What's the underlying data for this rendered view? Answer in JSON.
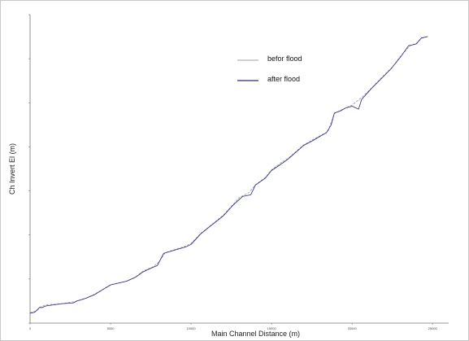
{
  "chart_data": {
    "type": "line",
    "title": "",
    "xlabel": "Main Channel Distance (m)",
    "ylabel": "Ch Invert El (m)",
    "x_ticks": [
      "0",
      "5000",
      "10000",
      "15000",
      "20000",
      "25000"
    ],
    "y_ticks": [
      "",
      "",
      "",
      "",
      "",
      "",
      "",
      ""
    ],
    "legend_position": "top-center",
    "series": [
      {
        "name": "befor flood",
        "color": "#a0a0a0",
        "points": [
          [
            0,
            0.65
          ],
          [
            400,
            0.75
          ],
          [
            700,
            1.02
          ],
          [
            1000,
            1.13
          ],
          [
            2000,
            1.2
          ],
          [
            2800,
            1.33
          ],
          [
            3300,
            1.46
          ],
          [
            4000,
            1.77
          ],
          [
            5000,
            2.36
          ],
          [
            6000,
            2.58
          ],
          [
            6500,
            2.8
          ],
          [
            7000,
            3.2
          ],
          [
            7600,
            3.44
          ],
          [
            8000,
            3.76
          ],
          [
            8400,
            4.34
          ],
          [
            9000,
            4.53
          ],
          [
            9600,
            4.72
          ],
          [
            10000,
            4.91
          ],
          [
            10600,
            5.52
          ],
          [
            11000,
            5.84
          ],
          [
            12000,
            6.65
          ],
          [
            12600,
            7.3
          ],
          [
            13000,
            7.74
          ],
          [
            13600,
            8.04
          ],
          [
            14000,
            8.52
          ],
          [
            14600,
            8.96
          ],
          [
            15000,
            9.44
          ],
          [
            15600,
            9.89
          ],
          [
            16000,
            10.12
          ],
          [
            17000,
            10.98
          ],
          [
            17600,
            11.32
          ],
          [
            18000,
            11.53
          ],
          [
            18500,
            11.79
          ],
          [
            18900,
            12.92
          ],
          [
            19400,
            13.16
          ],
          [
            20000,
            13.43
          ],
          [
            20600,
            13.9
          ],
          [
            21200,
            14.46
          ],
          [
            21800,
            15.1
          ],
          [
            22500,
            15.76
          ],
          [
            23000,
            16.43
          ],
          [
            23600,
            17.09
          ],
          [
            24000,
            17.23
          ],
          [
            24300,
            17.54
          ],
          [
            24700,
            17.65
          ]
        ]
      },
      {
        "name": "after flood",
        "color": "#2a2a80",
        "points": [
          [
            0,
            0.6
          ],
          [
            300,
            0.67
          ],
          [
            600,
            0.98
          ],
          [
            700,
            0.95
          ],
          [
            1000,
            1.06
          ],
          [
            2000,
            1.2
          ],
          [
            2700,
            1.25
          ],
          [
            2900,
            1.36
          ],
          [
            3500,
            1.54
          ],
          [
            4000,
            1.75
          ],
          [
            5000,
            2.35
          ],
          [
            6000,
            2.58
          ],
          [
            6600,
            2.85
          ],
          [
            7000,
            3.15
          ],
          [
            7600,
            3.42
          ],
          [
            7900,
            3.54
          ],
          [
            8300,
            4.3
          ],
          [
            9000,
            4.5
          ],
          [
            9700,
            4.7
          ],
          [
            10000,
            4.85
          ],
          [
            10600,
            5.5
          ],
          [
            11000,
            5.82
          ],
          [
            12000,
            6.6
          ],
          [
            12600,
            7.26
          ],
          [
            13200,
            7.8
          ],
          [
            13700,
            7.9
          ],
          [
            14000,
            8.5
          ],
          [
            14600,
            8.92
          ],
          [
            15000,
            9.4
          ],
          [
            15600,
            9.8
          ],
          [
            16000,
            10.08
          ],
          [
            17000,
            10.95
          ],
          [
            17600,
            11.26
          ],
          [
            18000,
            11.5
          ],
          [
            18400,
            11.72
          ],
          [
            18700,
            12.2
          ],
          [
            18900,
            12.94
          ],
          [
            19300,
            13.08
          ],
          [
            19600,
            13.25
          ],
          [
            20000,
            13.36
          ],
          [
            20400,
            13.18
          ],
          [
            20600,
            13.78
          ],
          [
            21200,
            14.45
          ],
          [
            21800,
            15.04
          ],
          [
            22400,
            15.64
          ],
          [
            23000,
            16.38
          ],
          [
            23500,
            17.08
          ],
          [
            24000,
            17.2
          ],
          [
            24300,
            17.56
          ],
          [
            24700,
            17.65
          ]
        ]
      }
    ],
    "xlim": [
      0,
      26000
    ],
    "ylim": [
      0,
      19
    ]
  }
}
